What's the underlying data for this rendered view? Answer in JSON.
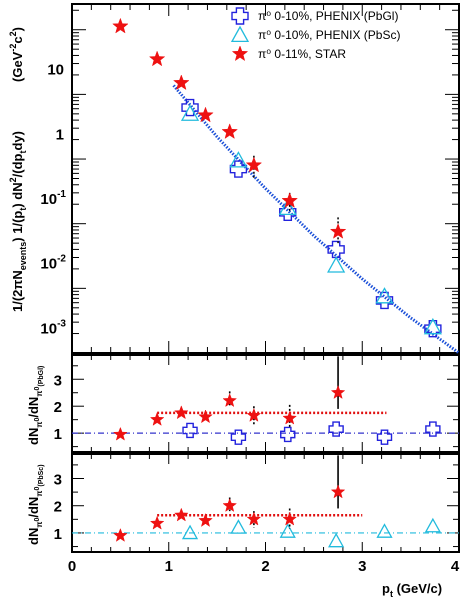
{
  "chart_data": [
    {
      "type": "scatter",
      "panel": "spectrum",
      "yscale": "log",
      "ylabel": "1/(2πN_events) 1/(p_t) dN²/(dp_t dy)  (GeV⁻²c²)",
      "xlim": [
        0,
        4
      ],
      "ylim": [
        0.0004,
        100
      ],
      "ytick_labels": [
        {
          "v": 10,
          "label": "10"
        },
        {
          "v": 1,
          "label": "1"
        },
        {
          "v": 0.1,
          "label": "10",
          "exp": "-1"
        },
        {
          "v": 0.01,
          "label": "10",
          "exp": "-2"
        },
        {
          "v": 0.001,
          "label": "10",
          "exp": "-3"
        }
      ],
      "legend_position": "top-right",
      "series": [
        {
          "name": "π⁰ 0-10%, PHENIX (PbGl)",
          "marker": "cross",
          "color": "#2222dd",
          "x": [
            1.22,
            1.72,
            2.23,
            2.73,
            3.23,
            3.73
          ],
          "y": [
            2.5,
            0.28,
            0.06,
            0.016,
            0.0026,
            0.00095
          ]
        },
        {
          "name": "π⁰ 0-10%, PHENIX (PbSc)",
          "marker": "triangle",
          "color": "#22bbdd",
          "x": [
            1.22,
            1.72,
            2.23,
            2.73,
            3.23,
            3.73
          ],
          "y": [
            2.0,
            0.38,
            0.07,
            0.009,
            0.003,
            0.001
          ]
        },
        {
          "name": "π⁰ 0-11%, STAR",
          "marker": "star",
          "color": "#ee1111",
          "x": [
            0.5,
            0.88,
            1.13,
            1.38,
            1.63,
            1.88,
            2.25,
            2.75
          ],
          "y": [
            45,
            14,
            6,
            1.9,
            1.05,
            0.32,
            0.09,
            0.03
          ]
        }
      ],
      "fit_curve": {
        "x": [
          1.05,
          1.5,
          2.0,
          2.5,
          3.0,
          3.5,
          4.0
        ],
        "y": [
          5.5,
          0.88,
          0.14,
          0.026,
          0.0056,
          0.0014,
          0.0004
        ]
      }
    },
    {
      "type": "scatter",
      "panel": "ratio-pbgl",
      "ylabel": "dN_π⁰/dN_π⁰(PbGl)",
      "xlim": [
        0,
        4
      ],
      "ylim": [
        0.3,
        3.9
      ],
      "yticks": [
        1,
        2,
        3
      ],
      "reference_line": 1,
      "star_mean": {
        "value": 1.75,
        "x_range": [
          0.88,
          3.25
        ]
      },
      "series": [
        {
          "name": "PbGl",
          "marker": "cross",
          "color": "#2222dd",
          "x": [
            1.22,
            1.72,
            2.23,
            2.73,
            3.23,
            3.73
          ],
          "y": [
            1.1,
            0.85,
            0.95,
            1.15,
            0.85,
            1.15
          ]
        },
        {
          "name": "STAR",
          "marker": "star",
          "color": "#ee1111",
          "x": [
            0.5,
            0.88,
            1.13,
            1.38,
            1.63,
            1.88,
            2.25,
            2.75
          ],
          "y": [
            0.95,
            1.5,
            1.75,
            1.6,
            2.2,
            1.65,
            1.55,
            2.5
          ],
          "yerr_hi": [
            0,
            0,
            0,
            0,
            0.35,
            0.35,
            0.5,
            1.35
          ],
          "yerr_lo": [
            0,
            0,
            0,
            0,
            0.2,
            0.35,
            0.35,
            0.6
          ]
        }
      ]
    },
    {
      "type": "scatter",
      "panel": "ratio-pbsc",
      "ylabel": "dN_π⁰/dN_π⁰(PbSc)",
      "xlabel": "p_t (GeV/c)",
      "xlim": [
        0,
        4
      ],
      "ylim": [
        0.3,
        3.9
      ],
      "yticks": [
        1,
        2,
        3
      ],
      "xticks": [
        0,
        1,
        2,
        3,
        4
      ],
      "reference_line": 1,
      "star_mean": {
        "value": 1.65,
        "x_range": [
          0.88,
          3.0
        ]
      },
      "series": [
        {
          "name": "PbSc",
          "marker": "triangle",
          "color": "#22bbdd",
          "x": [
            1.22,
            1.72,
            2.23,
            2.73,
            3.23,
            3.73
          ],
          "y": [
            1.0,
            1.2,
            1.05,
            0.7,
            1.05,
            1.25
          ]
        },
        {
          "name": "STAR",
          "marker": "star",
          "color": "#ee1111",
          "x": [
            0.5,
            0.88,
            1.13,
            1.38,
            1.63,
            1.88,
            2.25,
            2.75
          ],
          "y": [
            0.9,
            1.35,
            1.65,
            1.45,
            2.0,
            1.5,
            1.5,
            2.5
          ],
          "yerr_hi": [
            0,
            0,
            0,
            0,
            0.3,
            0.3,
            0.4,
            1.35
          ],
          "yerr_lo": [
            0,
            0,
            0,
            0,
            0.2,
            0.3,
            0.35,
            0.6
          ]
        }
      ]
    }
  ],
  "text": {
    "y_unit": "(GeV",
    "y_unit_exp1": "-2",
    "y_unit_mid": "c",
    "y_unit_exp2": "2",
    "y_unit_close": ")",
    "x_label_main": "p",
    "x_label_sub": "t",
    "x_label_unit": " (GeV/c)"
  }
}
